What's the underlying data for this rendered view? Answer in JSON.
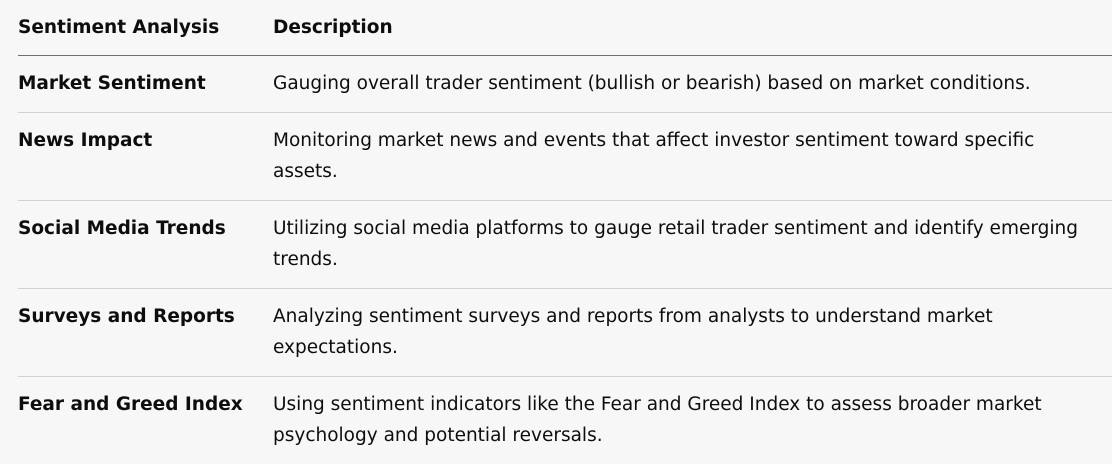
{
  "table": {
    "headers": [
      "Sentiment Analysis",
      "Description"
    ],
    "rows": [
      {
        "name": "Market Sentiment",
        "description": "Gauging overall trader sentiment (bullish or bearish) based on market conditions."
      },
      {
        "name": "News Impact",
        "description": "Monitoring market news and events that affect investor sentiment toward specific assets."
      },
      {
        "name": "Social Media Trends",
        "description": "Utilizing social media platforms to gauge retail trader sentiment and identify emerging trends."
      },
      {
        "name": "Surveys and Reports",
        "description": "Analyzing sentiment surveys and reports from analysts to understand market expectations."
      },
      {
        "name": "Fear and Greed Index",
        "description": "Using sentiment indicators like the Fear and Greed Index to assess broader market psychology and potential reversals."
      }
    ]
  }
}
